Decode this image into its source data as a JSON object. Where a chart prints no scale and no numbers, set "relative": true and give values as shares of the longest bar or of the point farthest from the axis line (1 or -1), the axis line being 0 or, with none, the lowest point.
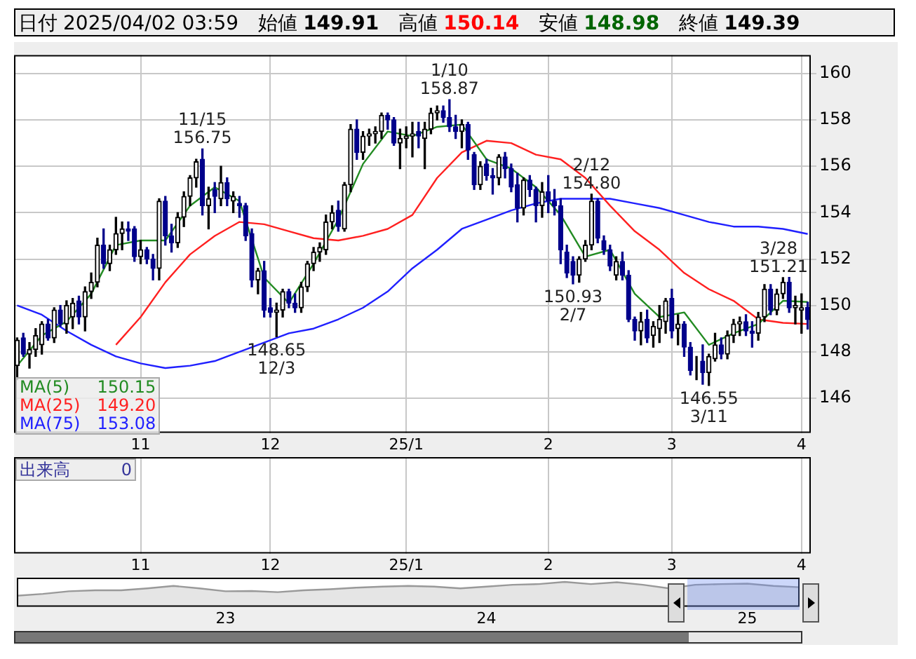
{
  "chart_data": [
    {
      "type": "candlestick",
      "title": "日付 2025/04/02 03:59 始値 149.91 高値 150.14 安値 148.98 終値 149.39",
      "categories": [
        null,
        null,
        null,
        null,
        null,
        null,
        null,
        null,
        null,
        null,
        null,
        null,
        null,
        null,
        null,
        null,
        null,
        null,
        null,
        null,
        "11",
        null,
        null,
        null,
        null,
        null,
        null,
        null,
        null,
        null,
        null,
        null,
        null,
        null,
        null,
        null,
        null,
        null,
        null,
        null,
        null,
        "12",
        null,
        null,
        null,
        null,
        null,
        null,
        null,
        null,
        null,
        null,
        null,
        null,
        null,
        null,
        null,
        null,
        null,
        null,
        null,
        null,
        null,
        "25/1",
        null,
        null,
        null,
        null,
        null,
        null,
        null,
        null,
        null,
        null,
        null,
        null,
        null,
        null,
        null,
        null,
        null,
        null,
        null,
        null,
        null,
        null,
        "2",
        null,
        null,
        null,
        null,
        null,
        null,
        null,
        null,
        null,
        null,
        null,
        null,
        null,
        null,
        null,
        null,
        null,
        null,
        null,
        "3",
        null,
        null,
        null,
        null,
        null,
        null,
        null,
        null,
        null,
        null,
        null,
        null,
        null,
        null,
        null,
        null,
        null,
        null,
        null,
        null,
        "4",
        null
      ],
      "colors": [
        "#000000",
        "#00008b",
        "#000000",
        "#000000",
        "#000000",
        "#00008b",
        "#000000",
        "#00008b",
        "#000000",
        "#000000",
        "#00008b",
        "#000000",
        "#000000",
        "#000000",
        "#00008b",
        "#000000",
        "#000000",
        "#000000",
        "#00008b",
        "#00008b",
        "#000000",
        "#00008b",
        "#00008b",
        "#000000",
        "#00008b",
        "#00008b",
        "#000000",
        "#000000",
        "#000000",
        "#000000",
        "#00008b",
        "#000000",
        "#00008b",
        "#000000",
        "#00008b",
        "#000000",
        "#00008b",
        "#00008b",
        "#00008b",
        "#000000",
        "#00008b",
        "#00008b",
        "#000000",
        "#000000",
        "#00008b",
        "#00008b",
        "#000000",
        "#000000",
        "#000000",
        "#000000",
        "#000000",
        "#000000",
        "#00008b",
        "#000000",
        "#000000",
        "#00008b",
        "#000000",
        "#000000",
        "#000000",
        "#000000",
        "#00008b",
        "#00008b",
        "#000000",
        "#000000",
        "#000000",
        "#00008b",
        "#000000",
        "#000000",
        "#000000",
        "#00008b",
        "#00008b",
        "#00008b",
        "#000000",
        "#00008b",
        "#00008b",
        "#000000",
        "#00008b",
        "#00008b",
        "#000000",
        "#00008b",
        "#00008b",
        "#00008b",
        "#000000",
        "#00008b",
        "#00008b",
        "#000000",
        "#00008b",
        "#00008b",
        "#00008b",
        "#00008b",
        "#00008b",
        "#000000",
        "#000000",
        "#000000",
        "#00008b",
        "#00008b",
        "#00008b",
        "#000000",
        "#00008b",
        "#00008b",
        "#00008b",
        "#000000",
        "#00008b",
        "#000000",
        "#000000",
        "#000000",
        "#00008b",
        "#000000",
        "#00008b",
        "#00008b",
        "#000000",
        "#00008b",
        "#000000",
        "#000000",
        "#00008b",
        "#000000",
        "#000000",
        "#000000",
        "#00008b",
        "#00008b",
        "#000000",
        "#000000",
        "#00008b",
        "#000000",
        "#000000",
        "#00008b",
        "#000000",
        "#000000",
        "#00008b"
      ],
      "ohlc": [
        [
          147.4,
          148.6,
          146.8,
          148.5
        ],
        [
          148.6,
          148.8,
          147.8,
          147.9
        ],
        [
          147.9,
          148.4,
          147.3,
          148.1
        ],
        [
          148.1,
          149.0,
          147.8,
          148.7
        ],
        [
          148.3,
          149.3,
          147.9,
          149.2
        ],
        [
          149.2,
          149.4,
          148.5,
          148.6
        ],
        [
          148.6,
          149.9,
          148.4,
          149.8
        ],
        [
          149.8,
          150.0,
          149.1,
          149.2
        ],
        [
          149.2,
          150.2,
          148.8,
          150.0
        ],
        [
          149.5,
          150.3,
          149.0,
          150.1
        ],
        [
          150.2,
          150.4,
          149.2,
          149.5
        ],
        [
          149.5,
          150.8,
          148.9,
          150.6
        ],
        [
          150.6,
          151.4,
          150.3,
          151.0
        ],
        [
          151.0,
          152.9,
          150.8,
          152.6
        ],
        [
          152.6,
          153.3,
          151.6,
          151.8
        ],
        [
          151.8,
          152.6,
          151.5,
          152.4
        ],
        [
          152.4,
          153.8,
          152.2,
          153.1
        ],
        [
          153.1,
          153.6,
          152.4,
          153.3
        ],
        [
          153.3,
          153.6,
          152.8,
          153.2
        ],
        [
          153.3,
          153.4,
          151.9,
          152.1
        ],
        [
          152.1,
          152.8,
          151.8,
          152.4
        ],
        [
          152.4,
          152.5,
          151.8,
          152.0
        ],
        [
          152.0,
          152.2,
          151.1,
          151.6
        ],
        [
          151.6,
          154.6,
          151.1,
          154.5
        ],
        [
          154.5,
          154.7,
          152.6,
          153.0
        ],
        [
          153.0,
          153.5,
          152.3,
          152.7
        ],
        [
          152.7,
          154.0,
          152.5,
          153.8
        ],
        [
          153.8,
          154.9,
          153.4,
          154.7
        ],
        [
          154.7,
          155.6,
          154.3,
          155.5
        ],
        [
          155.5,
          156.3,
          155.1,
          156.2
        ],
        [
          156.3,
          156.75,
          153.9,
          154.3
        ],
        [
          154.3,
          155.1,
          153.3,
          154.6
        ],
        [
          155.0,
          155.3,
          154.0,
          154.7
        ],
        [
          154.6,
          156.0,
          154.3,
          155.3
        ],
        [
          155.3,
          155.5,
          154.3,
          154.6
        ],
        [
          154.5,
          154.9,
          154.0,
          154.7
        ],
        [
          154.4,
          154.7,
          153.8,
          154.3
        ],
        [
          154.3,
          154.4,
          152.8,
          153.0
        ],
        [
          153.1,
          153.3,
          150.8,
          151.1
        ],
        [
          151.1,
          151.6,
          150.5,
          151.5
        ],
        [
          151.5,
          151.9,
          149.5,
          149.8
        ],
        [
          149.9,
          150.3,
          149.5,
          149.7
        ],
        [
          149.7,
          150.1,
          148.65,
          149.8
        ],
        [
          149.8,
          150.7,
          149.5,
          150.6
        ],
        [
          150.6,
          150.7,
          149.9,
          150.1
        ],
        [
          150.1,
          150.5,
          149.7,
          149.9
        ],
        [
          149.9,
          151.0,
          149.7,
          150.8
        ],
        [
          150.8,
          151.9,
          150.6,
          151.8
        ],
        [
          151.8,
          152.5,
          151.5,
          152.3
        ],
        [
          152.3,
          152.7,
          151.9,
          152.5
        ],
        [
          152.4,
          153.9,
          152.2,
          153.6
        ],
        [
          153.6,
          154.3,
          153.3,
          154.0
        ],
        [
          154.1,
          154.5,
          153.2,
          153.4
        ],
        [
          153.3,
          155.3,
          153.2,
          155.2
        ],
        [
          155.2,
          157.8,
          154.9,
          157.6
        ],
        [
          157.6,
          158.0,
          156.3,
          156.6
        ],
        [
          156.6,
          157.5,
          156.3,
          157.3
        ],
        [
          157.3,
          157.6,
          156.9,
          157.4
        ],
        [
          157.4,
          157.7,
          157.0,
          157.5
        ],
        [
          157.5,
          158.3,
          157.2,
          158.2
        ],
        [
          158.2,
          158.3,
          157.6,
          158.0
        ],
        [
          158.0,
          158.1,
          156.9,
          157.0
        ],
        [
          157.0,
          157.6,
          155.9,
          157.2
        ],
        [
          157.2,
          157.7,
          156.8,
          157.3
        ],
        [
          157.3,
          157.9,
          156.4,
          157.4
        ],
        [
          157.5,
          157.9,
          156.8,
          157.3
        ],
        [
          157.2,
          157.9,
          155.9,
          157.6
        ],
        [
          157.6,
          158.5,
          157.4,
          158.3
        ],
        [
          158.3,
          158.6,
          158.0,
          158.4
        ],
        [
          158.4,
          158.6,
          157.9,
          158.1
        ],
        [
          158.1,
          158.87,
          157.5,
          157.7
        ],
        [
          157.7,
          158.2,
          157.2,
          157.5
        ],
        [
          157.5,
          158.0,
          156.8,
          157.8
        ],
        [
          157.8,
          157.9,
          156.3,
          156.7
        ],
        [
          156.5,
          156.6,
          155.0,
          155.2
        ],
        [
          155.2,
          156.2,
          155.0,
          156.0
        ],
        [
          156.1,
          156.3,
          155.4,
          155.6
        ],
        [
          155.6,
          155.9,
          154.8,
          155.5
        ],
        [
          155.5,
          156.5,
          155.2,
          156.4
        ],
        [
          156.4,
          156.6,
          155.5,
          155.9
        ],
        [
          155.9,
          156.1,
          154.9,
          155.1
        ],
        [
          155.2,
          155.7,
          153.6,
          154.2
        ],
        [
          154.2,
          155.5,
          153.9,
          155.4
        ],
        [
          155.4,
          155.6,
          154.7,
          155.0
        ],
        [
          155.0,
          155.1,
          153.6,
          154.3
        ],
        [
          154.3,
          155.3,
          153.8,
          154.9
        ],
        [
          154.9,
          155.6,
          154.0,
          154.5
        ],
        [
          154.5,
          155.0,
          153.9,
          154.3
        ],
        [
          154.3,
          154.6,
          151.8,
          152.4
        ],
        [
          152.3,
          152.6,
          151.2,
          151.4
        ],
        [
          151.9,
          152.1,
          150.93,
          151.3
        ],
        [
          151.3,
          152.1,
          151.0,
          152.0
        ],
        [
          152.0,
          152.8,
          151.9,
          152.6
        ],
        [
          152.6,
          154.8,
          152.4,
          154.5
        ],
        [
          154.5,
          154.6,
          152.7,
          152.9
        ],
        [
          152.8,
          153.0,
          152.2,
          152.4
        ],
        [
          152.4,
          152.6,
          151.5,
          151.7
        ],
        [
          151.3,
          152.1,
          151.1,
          151.9
        ],
        [
          151.9,
          152.3,
          151.1,
          151.3
        ],
        [
          151.3,
          151.5,
          149.3,
          149.4
        ],
        [
          149.4,
          149.5,
          148.5,
          148.9
        ],
        [
          148.9,
          149.7,
          148.3,
          149.3
        ],
        [
          149.4,
          149.8,
          148.4,
          148.6
        ],
        [
          148.7,
          149.3,
          148.2,
          149.1
        ],
        [
          149.0,
          150.0,
          148.4,
          149.4
        ],
        [
          149.3,
          150.3,
          148.8,
          150.2
        ],
        [
          150.3,
          150.7,
          148.6,
          148.9
        ],
        [
          149.0,
          149.6,
          148.3,
          149.2
        ],
        [
          149.2,
          149.3,
          147.8,
          148.2
        ],
        [
          148.2,
          148.4,
          147.0,
          147.2
        ],
        [
          147.3,
          147.8,
          146.8,
          147.3
        ],
        [
          147.6,
          148.3,
          146.6,
          147.1
        ],
        [
          147.1,
          147.9,
          146.55,
          147.8
        ],
        [
          147.7,
          148.8,
          147.6,
          148.3
        ],
        [
          148.3,
          148.6,
          147.7,
          147.9
        ],
        [
          147.9,
          148.9,
          147.7,
          148.7
        ],
        [
          148.7,
          149.4,
          148.4,
          149.2
        ],
        [
          149.2,
          149.5,
          148.7,
          149.3
        ],
        [
          149.3,
          149.6,
          148.7,
          148.9
        ],
        [
          148.9,
          149.3,
          148.2,
          148.8
        ],
        [
          148.8,
          149.7,
          148.5,
          149.5
        ],
        [
          149.5,
          150.9,
          149.3,
          150.7
        ],
        [
          150.7,
          150.9,
          149.6,
          149.8
        ],
        [
          149.8,
          150.7,
          149.6,
          150.5
        ],
        [
          150.5,
          151.2,
          150.3,
          151.0
        ],
        [
          151.0,
          151.21,
          149.7,
          149.9
        ],
        [
          149.9,
          150.4,
          149.2,
          150.0
        ],
        [
          149.8,
          150.5,
          148.8,
          149.9
        ],
        [
          149.91,
          150.14,
          148.98,
          149.39
        ]
      ],
      "series": [
        {
          "name": "MA(5)",
          "type": "line",
          "color": "#228b22",
          "values": [
            147.4,
            null,
            null,
            null,
            148.7,
            null,
            null,
            null,
            149.3,
            null,
            null,
            null,
            150.5,
            null,
            null,
            null,
            152.6,
            null,
            null,
            null,
            152.8,
            null,
            null,
            null,
            152.8,
            null,
            null,
            null,
            154.3,
            null,
            null,
            null,
            155.1,
            null,
            null,
            null,
            154.5,
            null,
            null,
            null,
            151.2,
            null,
            null,
            null,
            150.1,
            null,
            null,
            null,
            151.8,
            null,
            null,
            null,
            153.7,
            null,
            null,
            null,
            156.1,
            null,
            null,
            null,
            157.5,
            null,
            null,
            null,
            157.3,
            null,
            null,
            null,
            157.7,
            null,
            null,
            null,
            157.8,
            null,
            null,
            null,
            156.3,
            null,
            null,
            null,
            155.9,
            null,
            null,
            null,
            155.1,
            null,
            null,
            null,
            153.9,
            null,
            null,
            null,
            152.1,
            null,
            null,
            null,
            152.4,
            null,
            null,
            null,
            150.5,
            null,
            null,
            null,
            149.5,
            null,
            null,
            null,
            149.7,
            null,
            null,
            null,
            148.3,
            null,
            null,
            null,
            148.8,
            null,
            null,
            null,
            149.2,
            null,
            null,
            null,
            150.2,
            null,
            null,
            null,
            150.15
          ]
        },
        {
          "name": "MA(25)",
          "type": "line",
          "color": "#ff2020",
          "values": [
            null,
            null,
            null,
            null,
            null,
            null,
            null,
            null,
            null,
            null,
            null,
            null,
            null,
            null,
            null,
            null,
            148.3,
            null,
            null,
            null,
            149.5,
            null,
            null,
            null,
            151.0,
            null,
            null,
            null,
            152.2,
            null,
            null,
            null,
            153.0,
            null,
            null,
            null,
            153.6,
            null,
            null,
            null,
            153.5,
            null,
            null,
            null,
            153.2,
            null,
            null,
            null,
            152.9,
            null,
            null,
            null,
            152.8,
            null,
            null,
            null,
            153.0,
            null,
            null,
            null,
            153.3,
            null,
            null,
            null,
            153.9,
            null,
            null,
            null,
            155.5,
            null,
            null,
            null,
            156.6,
            null,
            null,
            null,
            157.1,
            null,
            null,
            null,
            157.0,
            null,
            null,
            null,
            156.5,
            null,
            null,
            null,
            156.3,
            null,
            null,
            null,
            155.5,
            null,
            null,
            null,
            154.3,
            null,
            null,
            null,
            153.2,
            null,
            null,
            null,
            152.4,
            null,
            null,
            null,
            151.4,
            null,
            null,
            null,
            150.7,
            null,
            null,
            null,
            150.2,
            null,
            null,
            null,
            149.4,
            null,
            null,
            null,
            149.25,
            null,
            null,
            null,
            149.2
          ]
        },
        {
          "name": "MA(75)",
          "type": "line",
          "color": "#2020ff",
          "values": [
            150.0,
            null,
            null,
            null,
            149.6,
            null,
            null,
            null,
            148.9,
            null,
            null,
            null,
            148.3,
            null,
            null,
            null,
            147.8,
            null,
            null,
            null,
            147.5,
            null,
            null,
            null,
            147.3,
            null,
            null,
            null,
            147.4,
            null,
            null,
            null,
            147.6,
            null,
            null,
            null,
            148.0,
            null,
            null,
            null,
            148.4,
            null,
            null,
            null,
            148.8,
            null,
            null,
            null,
            149.0,
            null,
            null,
            null,
            149.4,
            null,
            null,
            null,
            149.9,
            null,
            null,
            null,
            150.6,
            null,
            null,
            null,
            151.6,
            null,
            null,
            null,
            152.4,
            null,
            null,
            null,
            153.3,
            null,
            null,
            null,
            153.7,
            null,
            null,
            null,
            154.1,
            null,
            null,
            null,
            154.4,
            null,
            null,
            null,
            154.6,
            null,
            null,
            null,
            154.6,
            null,
            null,
            null,
            154.6,
            null,
            null,
            null,
            154.4,
            null,
            null,
            null,
            154.2,
            null,
            null,
            null,
            153.9,
            null,
            null,
            null,
            153.6,
            null,
            null,
            null,
            153.4,
            null,
            null,
            null,
            153.4,
            null,
            null,
            null,
            153.3,
            null,
            null,
            null,
            153.08
          ]
        }
      ],
      "marker": "none",
      "ylim": [
        144.5,
        160.8
      ],
      "yticks": [
        146,
        148,
        150,
        152,
        154,
        156,
        158,
        160
      ],
      "grid": true,
      "legend": "bottom left",
      "annotations": [
        {
          "text": "11/15 156.75",
          "y": 156.75
        },
        {
          "text": "148.65 12/3",
          "y": 148.65
        },
        {
          "text": "1/10 158.87",
          "y": 158.87
        },
        {
          "text": "150.93 2/7",
          "y": 150.93
        },
        {
          "text": "2/12 154.80",
          "y": 154.8
        },
        {
          "text": "146.55 3/11",
          "y": 146.55
        },
        {
          "text": "3/28 151.21",
          "y": 151.21
        },
        "150.15",
        "149.20",
        "153.08",
        "出来高 0"
      ]
    },
    {
      "type": "area",
      "relative": true,
      "color": "#999999",
      "categories": [
        null,
        null,
        null,
        null,
        null,
        null,
        null,
        null,
        "23",
        null,
        null,
        null,
        null,
        null,
        null,
        null,
        null,
        null,
        "24",
        null,
        null,
        null,
        null,
        null,
        null,
        null,
        null,
        null,
        "25",
        null,
        null
      ],
      "values": [
        0,
        0.13,
        0.32,
        0.39,
        0.39,
        0.53,
        0.71,
        0.53,
        0.32,
        0.34,
        0.26,
        0.39,
        0.47,
        0.58,
        0.66,
        0.71,
        0.66,
        0.53,
        0.66,
        0.79,
        0.84,
        1,
        0.84,
        0.97,
        0.79,
        0.53,
        0.79,
        0.84,
        0.87,
        0.71,
        0.61
      ]
    }
  ]
}
